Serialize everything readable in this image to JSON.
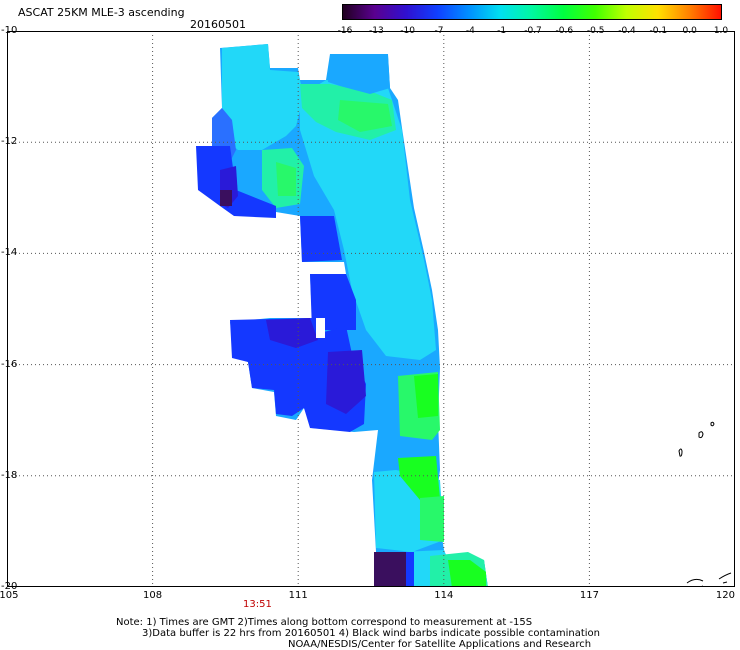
{
  "title": "ASCAT 25KM MLE-3 ascending",
  "date": "20160501",
  "colorbar": {
    "tick_labels": [
      "-16",
      "-13",
      "-10",
      "-7",
      "-4",
      "-1",
      "-0.7",
      "-0.6",
      "-0.5",
      "-0.4",
      "-0.1",
      "0.0",
      "1.0"
    ],
    "colors": [
      "#200020",
      "#5a0090",
      "#3010d0",
      "#1040ff",
      "#0090ff",
      "#00e0f0",
      "#00f8a0",
      "#00ff40",
      "#40ff00",
      "#c0ff00",
      "#ffe000",
      "#ff8000",
      "#ff1000"
    ]
  },
  "lat_labels": [
    "-10",
    "-12",
    "-14",
    "-16",
    "-18",
    "-20"
  ],
  "lon_labels": [
    "105",
    "108",
    "111",
    "114",
    "117",
    "120"
  ],
  "time_label": "13:51",
  "notes": {
    "line1": "Note: 1) Times are GMT 2)Times along bottom correspond to measurement at -15S",
    "line2": "3)Data buffer is 22 hrs from 20160501 4) Black wind barbs indicate possible contamination",
    "line3": "NOAA/NESDIS/Center for Satellite Applications and Research"
  },
  "palette": {
    "deep_purple": "#3a0f5e",
    "indigo": "#2a1ad8",
    "blue": "#1438ff",
    "mid_blue": "#2a70ff",
    "sky": "#1aa8ff",
    "cyan": "#22d8f8",
    "aqua": "#22e8d8",
    "sea_green": "#22f0a8",
    "green": "#28f86a",
    "bright_green": "#18ff20"
  }
}
